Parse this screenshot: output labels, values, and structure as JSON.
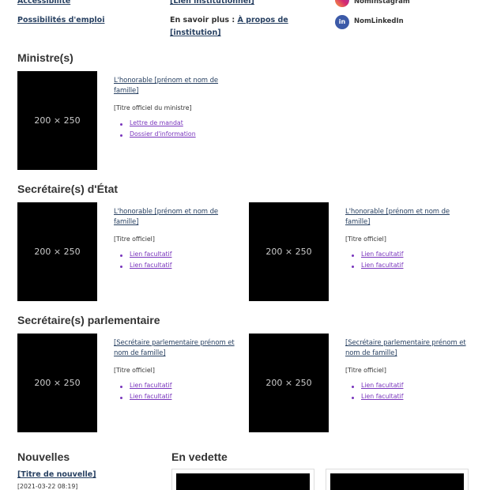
{
  "header": {
    "links": [
      "Accessibilité",
      "Possibilités d'emploi"
    ],
    "institution_link": "[Lien institutionnel]",
    "learn_more_label": "En savoir plus :",
    "learn_more_link": "À propos de [institution]",
    "social": [
      "NomInstagram",
      "NomLinkedIn"
    ]
  },
  "sections": [
    {
      "heading": "Ministre(s)",
      "cards": [
        {
          "image": "200 × 250",
          "name": "L'honorable [prénom et nom de famille]",
          "title": "[Titre officiel du ministre]",
          "links": [
            "Lettre de mandat",
            "Dossier d'information"
          ]
        }
      ]
    },
    {
      "heading": "Secrétaire(s) d'État",
      "cards": [
        {
          "image": "200 × 250",
          "name": "L'honorable [prénom et nom de famille]",
          "title": "[Titre officiel]",
          "links": [
            "Lien facultatif",
            "Lien facultatif"
          ]
        },
        {
          "image": "200 × 250",
          "name": "L'honorable [prénom et nom de famille]",
          "title": "[Titre officiel]",
          "links": [
            "Lien facultatif",
            "Lien facultatif"
          ]
        }
      ]
    },
    {
      "heading": "Secrétaire(s) parlementaire",
      "cards": [
        {
          "image": "200 × 250",
          "name": "[Secrétaire parlementaire prénom et nom de famille]",
          "title": "[Titre officiel]",
          "links": [
            "Lien facultatif",
            "Lien facultatif"
          ]
        },
        {
          "image": "200 × 250",
          "name": "[Secrétaire parlementaire prénom et nom de famille]",
          "title": "[Titre officiel]",
          "links": [
            "Lien facultatif",
            "Lien facultatif"
          ]
        }
      ]
    }
  ],
  "news": {
    "heading": "Nouvelles",
    "items": [
      {
        "title": "[Titre de nouvelle]",
        "date": "[2021-03-22 08:19]"
      }
    ]
  },
  "featured": {
    "heading": "En vedette"
  }
}
